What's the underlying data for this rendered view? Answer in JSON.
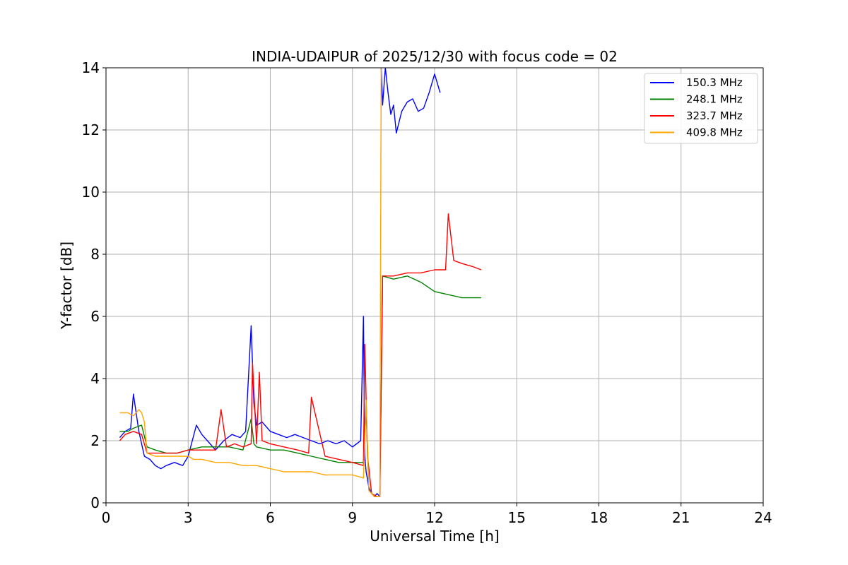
{
  "chart_data": {
    "type": "line",
    "title": "INDIA-UDAIPUR of 2025/12/30 with focus code = 02",
    "xlabel": "Universal Time [h]",
    "ylabel": "Y-factor [dB]",
    "xlim": [
      0,
      24
    ],
    "ylim": [
      0,
      14
    ],
    "xticks": [
      0,
      3,
      6,
      9,
      12,
      15,
      18,
      21,
      24
    ],
    "yticks": [
      0,
      2,
      4,
      6,
      8,
      10,
      12,
      14
    ],
    "xtick_labels": [
      "0",
      "3",
      "6",
      "9",
      "12",
      "15",
      "18",
      "21",
      "24"
    ],
    "ytick_labels": [
      "0",
      "2",
      "4",
      "6",
      "8",
      "10",
      "12",
      "14"
    ],
    "grid": true,
    "legend_position": "top-right",
    "series": [
      {
        "name": "150.3 MHz",
        "color": "#0000ff",
        "segments": [
          {
            "x": [
              0.5,
              0.7,
              0.9,
              1.0,
              1.2,
              1.4,
              1.6,
              1.8,
              2.0,
              2.2,
              2.5,
              2.8,
              3.0,
              3.3,
              3.5,
              3.8,
              4.0,
              4.3,
              4.6,
              4.9,
              5.1,
              5.3,
              5.4,
              5.5,
              5.7,
              6.0,
              6.3,
              6.6,
              6.9,
              7.2,
              7.5,
              7.8,
              8.1,
              8.4,
              8.7,
              9.0,
              9.3,
              9.4,
              9.45,
              9.5,
              9.6,
              9.7,
              9.8,
              9.9,
              10.0
            ],
            "y": [
              2.1,
              2.3,
              2.4,
              3.5,
              2.3,
              1.5,
              1.4,
              1.2,
              1.1,
              1.2,
              1.3,
              1.2,
              1.5,
              2.5,
              2.2,
              1.9,
              1.7,
              2.0,
              2.2,
              2.1,
              2.3,
              5.7,
              3.2,
              2.5,
              2.6,
              2.3,
              2.2,
              2.1,
              2.2,
              2.1,
              2.0,
              1.9,
              2.0,
              1.9,
              2.0,
              1.8,
              2.0,
              6.0,
              1.5,
              1.0,
              0.5,
              0.3,
              0.2,
              0.3,
              0.2
            ]
          },
          {
            "x": [
              10.05,
              10.1,
              10.2,
              10.3,
              10.4,
              10.5,
              10.6,
              10.8,
              11.0,
              11.2,
              11.4,
              11.6,
              11.8,
              12.0,
              12.2
            ],
            "y": [
              14.0,
              12.8,
              14.0,
              13.2,
              12.5,
              12.8,
              11.9,
              12.6,
              12.9,
              13.0,
              12.6,
              12.7,
              13.2,
              13.8,
              13.2
            ]
          }
        ]
      },
      {
        "name": "248.1 MHz",
        "color": "#008000",
        "segments": [
          {
            "x": [
              0.5,
              0.8,
              1.0,
              1.3,
              1.5,
              1.8,
              2.2,
              2.6,
              3.0,
              3.5,
              4.0,
              4.5,
              5.0,
              5.3,
              5.4,
              5.5,
              6.0,
              6.5,
              7.0,
              7.5,
              8.0,
              8.5,
              9.0,
              9.4,
              9.5,
              9.6,
              9.8,
              10.0,
              10.1,
              10.5,
              11.0,
              11.5,
              12.0,
              12.5,
              13.0,
              13.7
            ],
            "y": [
              2.3,
              2.3,
              2.4,
              2.5,
              1.8,
              1.7,
              1.6,
              1.6,
              1.7,
              1.8,
              1.8,
              1.8,
              1.7,
              2.7,
              1.9,
              1.8,
              1.7,
              1.7,
              1.6,
              1.5,
              1.4,
              1.3,
              1.3,
              1.3,
              3.0,
              0.4,
              0.2,
              0.2,
              7.3,
              7.2,
              7.3,
              7.1,
              6.8,
              6.7,
              6.6,
              6.6
            ]
          }
        ]
      },
      {
        "name": "323.7 MHz",
        "color": "#ff0000",
        "segments": [
          {
            "x": [
              0.5,
              0.7,
              1.0,
              1.3,
              1.5,
              1.8,
              2.2,
              2.6,
              3.0,
              3.5,
              4.0,
              4.2,
              4.4,
              4.7,
              5.0,
              5.3,
              5.35,
              5.5,
              5.6,
              5.7,
              6.0,
              6.5,
              7.0,
              7.4,
              7.5,
              8.0,
              8.5,
              9.0,
              9.4,
              9.45,
              9.55,
              9.7,
              9.9,
              10.0,
              10.1,
              10.5,
              11.0,
              11.5,
              12.0,
              12.4,
              12.5,
              12.7,
              13.0,
              13.4,
              13.7
            ],
            "y": [
              2.0,
              2.2,
              2.3,
              2.2,
              1.6,
              1.6,
              1.6,
              1.6,
              1.7,
              1.7,
              1.7,
              3.0,
              1.8,
              1.9,
              1.8,
              1.9,
              4.5,
              1.9,
              4.2,
              2.0,
              1.9,
              1.8,
              1.7,
              1.6,
              3.4,
              1.5,
              1.4,
              1.3,
              1.2,
              5.1,
              1.5,
              0.3,
              0.2,
              0.2,
              7.3,
              7.3,
              7.4,
              7.4,
              7.5,
              7.5,
              9.3,
              7.8,
              7.7,
              7.6,
              7.5
            ]
          }
        ]
      },
      {
        "name": "409.8 MHz",
        "color": "#ffa500",
        "segments": [
          {
            "x": [
              0.5,
              0.8,
              1.0,
              1.2,
              1.3,
              1.4,
              1.5,
              1.8,
              2.2,
              2.6,
              3.0,
              3.2,
              3.5,
              4.0,
              4.5,
              5.0,
              5.5,
              6.0,
              6.5,
              7.0,
              7.5,
              8.0,
              8.5,
              9.0,
              9.4,
              9.5,
              9.6,
              9.8,
              10.0,
              10.05
            ],
            "y": [
              2.9,
              2.9,
              2.8,
              3.0,
              2.9,
              2.6,
              1.6,
              1.5,
              1.5,
              1.5,
              1.5,
              1.4,
              1.4,
              1.3,
              1.3,
              1.2,
              1.2,
              1.1,
              1.0,
              1.0,
              1.0,
              0.9,
              0.9,
              0.9,
              0.8,
              3.3,
              0.4,
              0.2,
              0.2,
              14.0
            ]
          }
        ]
      }
    ]
  }
}
